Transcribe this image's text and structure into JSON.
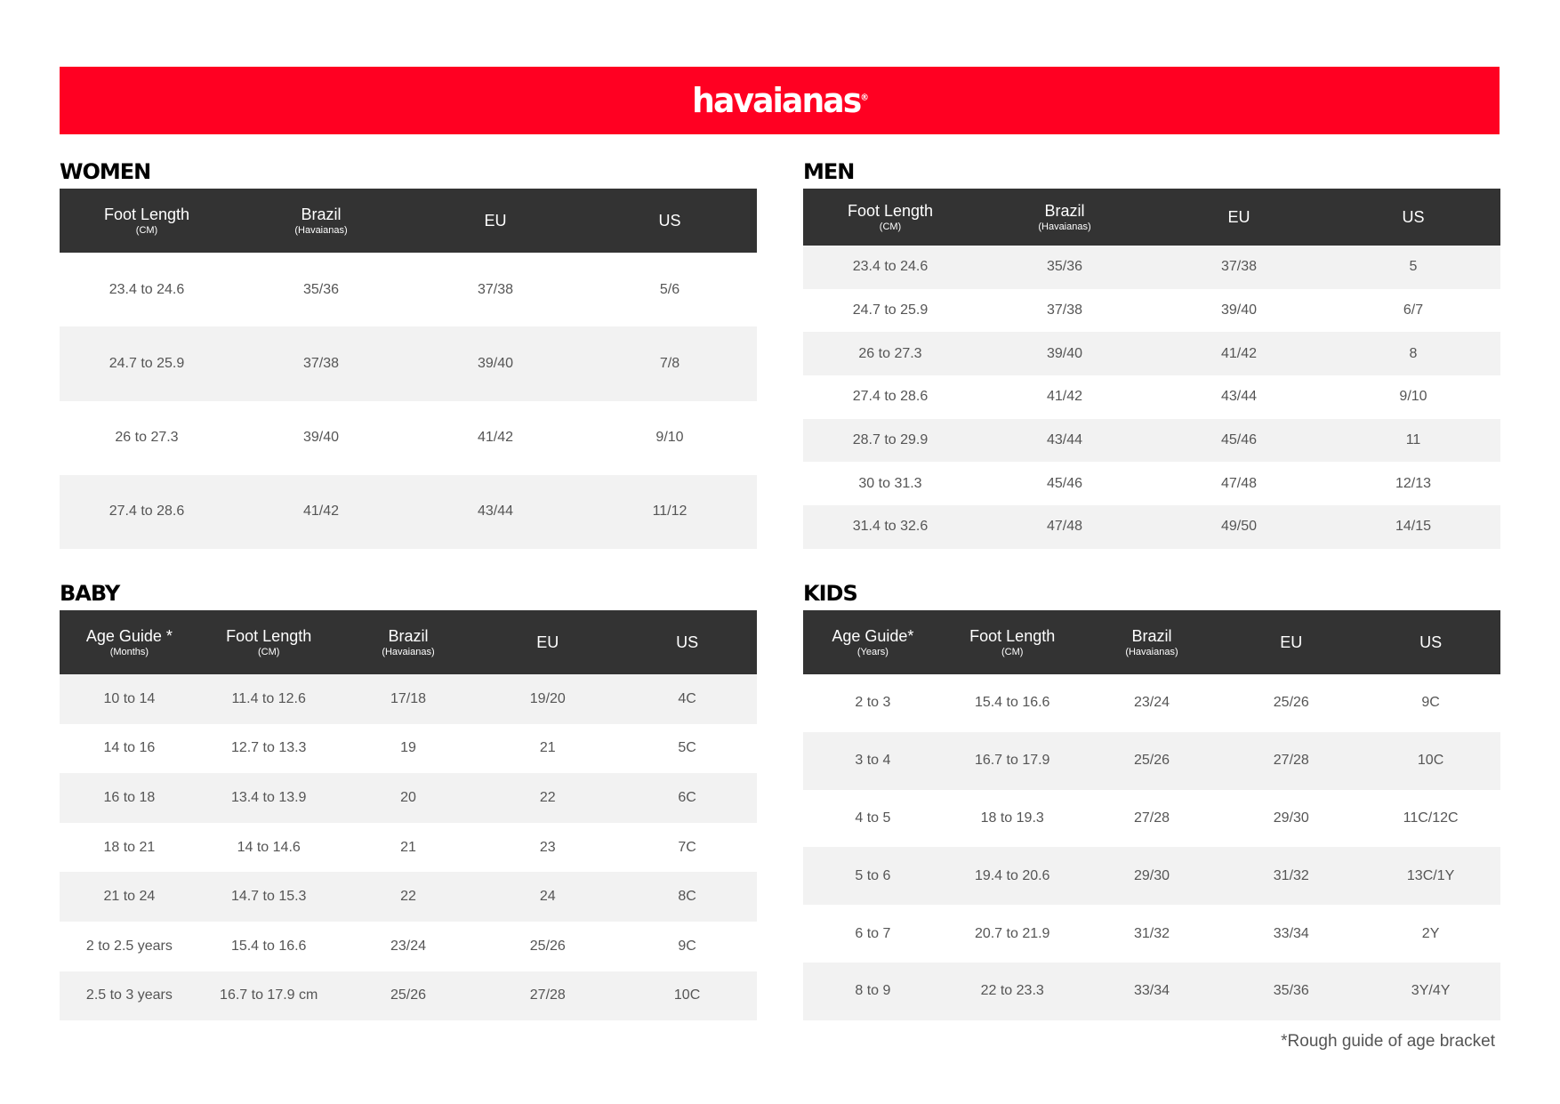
{
  "brand": {
    "logo": "havaianas",
    "color": "#ff0022"
  },
  "women": {
    "title": "WOMEN",
    "headers": [
      {
        "label": "Foot Length",
        "sub": "(CM)"
      },
      {
        "label": "Brazil",
        "sub": "(Havaianas)"
      },
      {
        "label": "EU",
        "sub": ""
      },
      {
        "label": "US",
        "sub": ""
      }
    ],
    "rows": [
      [
        "23.4 to 24.6",
        "35/36",
        "37/38",
        "5/6"
      ],
      [
        "24.7 to 25.9",
        "37/38",
        "39/40",
        "7/8"
      ],
      [
        "26 to 27.3",
        "39/40",
        "41/42",
        "9/10"
      ],
      [
        "27.4 to 28.6",
        "41/42",
        "43/44",
        "11/12"
      ]
    ]
  },
  "men": {
    "title": "MEN",
    "headers": [
      {
        "label": "Foot Length",
        "sub": "(CM)"
      },
      {
        "label": "Brazil",
        "sub": "(Havaianas)"
      },
      {
        "label": "EU",
        "sub": ""
      },
      {
        "label": "US",
        "sub": ""
      }
    ],
    "rows": [
      [
        "23.4 to 24.6",
        "35/36",
        "37/38",
        "5"
      ],
      [
        "24.7 to 25.9",
        "37/38",
        "39/40",
        "6/7"
      ],
      [
        "26 to 27.3",
        "39/40",
        "41/42",
        "8"
      ],
      [
        "27.4 to 28.6",
        "41/42",
        "43/44",
        "9/10"
      ],
      [
        "28.7 to 29.9",
        "43/44",
        "45/46",
        "11"
      ],
      [
        "30 to 31.3",
        "45/46",
        "47/48",
        "12/13"
      ],
      [
        "31.4 to 32.6",
        "47/48",
        "49/50",
        "14/15"
      ]
    ]
  },
  "baby": {
    "title": "BABY",
    "headers": [
      {
        "label": "Age Guide *",
        "sub": "(Months)"
      },
      {
        "label": "Foot Length",
        "sub": "(CM)"
      },
      {
        "label": "Brazil",
        "sub": "(Havaianas)"
      },
      {
        "label": "EU",
        "sub": ""
      },
      {
        "label": "US",
        "sub": ""
      }
    ],
    "rows": [
      [
        "10 to 14",
        "11.4 to 12.6",
        "17/18",
        "19/20",
        "4C"
      ],
      [
        "14 to 16",
        "12.7 to 13.3",
        "19",
        "21",
        "5C"
      ],
      [
        "16 to 18",
        "13.4 to 13.9",
        "20",
        "22",
        "6C"
      ],
      [
        "18 to 21",
        "14 to 14.6",
        "21",
        "23",
        "7C"
      ],
      [
        "21 to 24",
        "14.7 to 15.3",
        "22",
        "24",
        "8C"
      ],
      [
        "2 to 2.5 years",
        "15.4 to 16.6",
        "23/24",
        "25/26",
        "9C"
      ],
      [
        "2.5 to 3 years",
        "16.7 to 17.9 cm",
        "25/26",
        "27/28",
        "10C"
      ]
    ]
  },
  "kids": {
    "title": "KIDS",
    "headers": [
      {
        "label": "Age Guide*",
        "sub": "(Years)"
      },
      {
        "label": "Foot Length",
        "sub": "(CM)"
      },
      {
        "label": "Brazil",
        "sub": "(Havaianas)"
      },
      {
        "label": "EU",
        "sub": ""
      },
      {
        "label": "US",
        "sub": ""
      }
    ],
    "rows": [
      [
        "2 to 3",
        "15.4 to 16.6",
        "23/24",
        "25/26",
        "9C"
      ],
      [
        "3 to 4",
        "16.7 to 17.9",
        "25/26",
        "27/28",
        "10C"
      ],
      [
        "4 to 5",
        "18 to 19.3",
        "27/28",
        "29/30",
        "11C/12C"
      ],
      [
        "5 to 6",
        "19.4 to 20.6",
        "29/30",
        "31/32",
        "13C/1Y"
      ],
      [
        "6 to 7",
        "20.7 to 21.9",
        "31/32",
        "33/34",
        "2Y"
      ],
      [
        "8 to 9",
        "22 to 23.3",
        "33/34",
        "35/36",
        "3Y/4Y"
      ]
    ]
  },
  "footnote": "*Rough guide of age bracket"
}
